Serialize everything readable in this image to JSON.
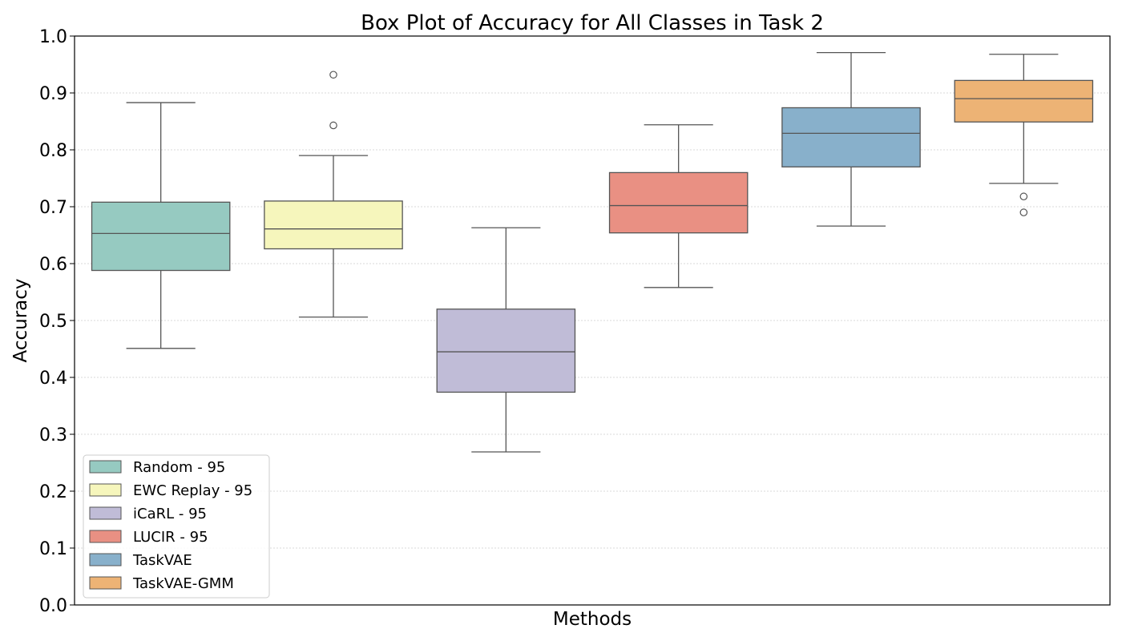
{
  "chart_data": {
    "type": "box",
    "title": "Box Plot of Accuracy for All Classes in Task 2",
    "xlabel": "Methods",
    "ylabel": "Accuracy",
    "ylim": [
      0.0,
      1.0
    ],
    "yticks": [
      0.0,
      0.1,
      0.2,
      0.3,
      0.4,
      0.5,
      0.6,
      0.7,
      0.8,
      0.9,
      1.0
    ],
    "ytick_labels": [
      "0.0",
      "0.1",
      "0.2",
      "0.3",
      "0.4",
      "0.5",
      "0.6",
      "0.7",
      "0.8",
      "0.9",
      "1.0"
    ],
    "grid": "horizontal dotted",
    "legend_position": "lower-left",
    "series": [
      {
        "name": "Random - 95",
        "color": "#96cac1",
        "whisker_low": 0.451,
        "q1": 0.588,
        "median": 0.653,
        "q3": 0.708,
        "whisker_high": 0.883,
        "outliers": []
      },
      {
        "name": "EWC Replay - 95",
        "color": "#f6f6bc",
        "whisker_low": 0.506,
        "q1": 0.626,
        "median": 0.661,
        "q3": 0.71,
        "whisker_high": 0.79,
        "outliers": [
          0.843,
          0.932
        ]
      },
      {
        "name": "iCaRL - 95",
        "color": "#c0bcd7",
        "whisker_low": 0.269,
        "q1": 0.374,
        "median": 0.445,
        "q3": 0.52,
        "whisker_high": 0.663,
        "outliers": []
      },
      {
        "name": "LUCIR - 95",
        "color": "#e99083",
        "whisker_low": 0.558,
        "q1": 0.654,
        "median": 0.702,
        "q3": 0.76,
        "whisker_high": 0.844,
        "outliers": []
      },
      {
        "name": "TaskVAE",
        "color": "#88b0cb",
        "whisker_low": 0.666,
        "q1": 0.77,
        "median": 0.829,
        "q3": 0.874,
        "whisker_high": 0.971,
        "outliers": []
      },
      {
        "name": "TaskVAE-GMM",
        "color": "#edb375",
        "whisker_low": 0.741,
        "q1": 0.849,
        "median": 0.89,
        "q3": 0.922,
        "whisker_high": 0.968,
        "outliers": [
          0.69,
          0.718
        ]
      }
    ]
  }
}
